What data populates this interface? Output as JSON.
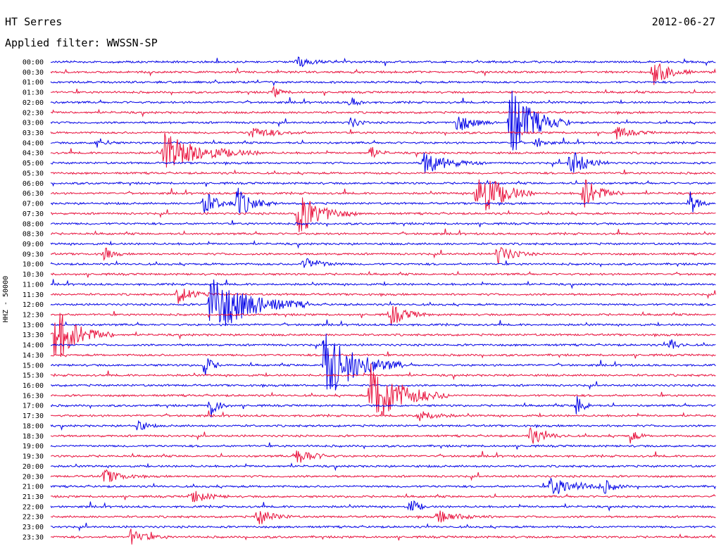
{
  "header": {
    "station": "HT Serres",
    "date": "2012-06-27",
    "filter_label": "Applied filter: WWSSN-SP"
  },
  "chart_data": {
    "type": "line",
    "kind": "helicorder",
    "ylabel": "HHZ - 50000",
    "trace_colors": [
      "#0000e6",
      "#e8103c"
    ],
    "row_labels": [
      "00:00",
      "00:30",
      "01:00",
      "01:30",
      "02:00",
      "02:30",
      "03:00",
      "03:30",
      "04:00",
      "04:30",
      "05:00",
      "05:30",
      "06:00",
      "06:30",
      "07:00",
      "07:30",
      "08:00",
      "08:30",
      "09:00",
      "09:30",
      "10:00",
      "10:30",
      "11:00",
      "11:30",
      "12:00",
      "12:30",
      "13:00",
      "13:30",
      "14:00",
      "14:30",
      "15:00",
      "15:30",
      "16:00",
      "16:30",
      "17:00",
      "17:30",
      "18:00",
      "18:30",
      "19:00",
      "19:30",
      "20:00",
      "20:30",
      "21:00",
      "21:30",
      "22:00",
      "22:30",
      "23:00",
      "23:30"
    ],
    "events": [
      {
        "row": 0,
        "x": 0.37,
        "amp": 0.35,
        "dur": 0.02
      },
      {
        "row": 1,
        "x": 0.905,
        "amp": 1.0,
        "dur": 0.02
      },
      {
        "row": 3,
        "x": 0.335,
        "amp": 0.35,
        "dur": 0.01
      },
      {
        "row": 4,
        "x": 0.45,
        "amp": 0.4,
        "dur": 0.01
      },
      {
        "row": 6,
        "x": 0.61,
        "amp": 0.7,
        "dur": 0.02
      },
      {
        "row": 6,
        "x": 0.69,
        "amp": 2.5,
        "dur": 0.03
      },
      {
        "row": 6,
        "x": 0.45,
        "amp": 0.4,
        "dur": 0.01
      },
      {
        "row": 7,
        "x": 0.3,
        "amp": 0.4,
        "dur": 0.03
      },
      {
        "row": 7,
        "x": 0.85,
        "amp": 0.4,
        "dur": 0.02
      },
      {
        "row": 8,
        "x": 0.07,
        "amp": 0.4,
        "dur": 0.01
      },
      {
        "row": 8,
        "x": 0.73,
        "amp": 0.4,
        "dur": 0.01
      },
      {
        "row": 9,
        "x": 0.17,
        "amp": 1.3,
        "dur": 0.05
      },
      {
        "row": 9,
        "x": 0.48,
        "amp": 0.5,
        "dur": 0.01
      },
      {
        "row": 10,
        "x": 0.56,
        "amp": 0.8,
        "dur": 0.03
      },
      {
        "row": 10,
        "x": 0.78,
        "amp": 1.0,
        "dur": 0.02
      },
      {
        "row": 13,
        "x": 0.64,
        "amp": 2.0,
        "dur": 0.03
      },
      {
        "row": 13,
        "x": 0.8,
        "amp": 1.2,
        "dur": 0.02
      },
      {
        "row": 14,
        "x": 0.23,
        "amp": 0.8,
        "dur": 0.02
      },
      {
        "row": 14,
        "x": 0.28,
        "amp": 1.0,
        "dur": 0.02
      },
      {
        "row": 14,
        "x": 0.96,
        "amp": 0.9,
        "dur": 0.01
      },
      {
        "row": 15,
        "x": 0.37,
        "amp": 1.5,
        "dur": 0.03
      },
      {
        "row": 19,
        "x": 0.08,
        "amp": 0.5,
        "dur": 0.01
      },
      {
        "row": 19,
        "x": 0.67,
        "amp": 0.7,
        "dur": 0.02
      },
      {
        "row": 20,
        "x": 0.38,
        "amp": 0.5,
        "dur": 0.02
      },
      {
        "row": 23,
        "x": 0.19,
        "amp": 0.6,
        "dur": 0.02
      },
      {
        "row": 24,
        "x": 0.24,
        "amp": 2.2,
        "dur": 0.05
      },
      {
        "row": 25,
        "x": 0.51,
        "amp": 0.8,
        "dur": 0.02
      },
      {
        "row": 27,
        "x": 0.005,
        "amp": 2.0,
        "dur": 0.03
      },
      {
        "row": 28,
        "x": 0.93,
        "amp": 0.5,
        "dur": 0.01
      },
      {
        "row": 30,
        "x": 0.41,
        "amp": 2.6,
        "dur": 0.04
      },
      {
        "row": 30,
        "x": 0.23,
        "amp": 0.8,
        "dur": 0.01
      },
      {
        "row": 33,
        "x": 0.48,
        "amp": 2.2,
        "dur": 0.04
      },
      {
        "row": 34,
        "x": 0.24,
        "amp": 0.9,
        "dur": 0.01
      },
      {
        "row": 34,
        "x": 0.79,
        "amp": 0.7,
        "dur": 0.01
      },
      {
        "row": 35,
        "x": 0.55,
        "amp": 0.5,
        "dur": 0.02
      },
      {
        "row": 36,
        "x": 0.13,
        "amp": 0.5,
        "dur": 0.01
      },
      {
        "row": 37,
        "x": 0.72,
        "amp": 0.6,
        "dur": 0.02
      },
      {
        "row": 37,
        "x": 0.87,
        "amp": 0.5,
        "dur": 0.01
      },
      {
        "row": 39,
        "x": 0.37,
        "amp": 0.6,
        "dur": 0.02
      },
      {
        "row": 41,
        "x": 0.08,
        "amp": 0.5,
        "dur": 0.02
      },
      {
        "row": 42,
        "x": 0.75,
        "amp": 0.6,
        "dur": 0.04
      },
      {
        "row": 42,
        "x": 0.83,
        "amp": 0.5,
        "dur": 0.01
      },
      {
        "row": 43,
        "x": 0.21,
        "amp": 0.5,
        "dur": 0.02
      },
      {
        "row": 44,
        "x": 0.54,
        "amp": 0.6,
        "dur": 0.01
      },
      {
        "row": 45,
        "x": 0.31,
        "amp": 0.6,
        "dur": 0.02
      },
      {
        "row": 45,
        "x": 0.58,
        "amp": 0.4,
        "dur": 0.03
      },
      {
        "row": 47,
        "x": 0.12,
        "amp": 0.5,
        "dur": 0.02
      }
    ]
  }
}
